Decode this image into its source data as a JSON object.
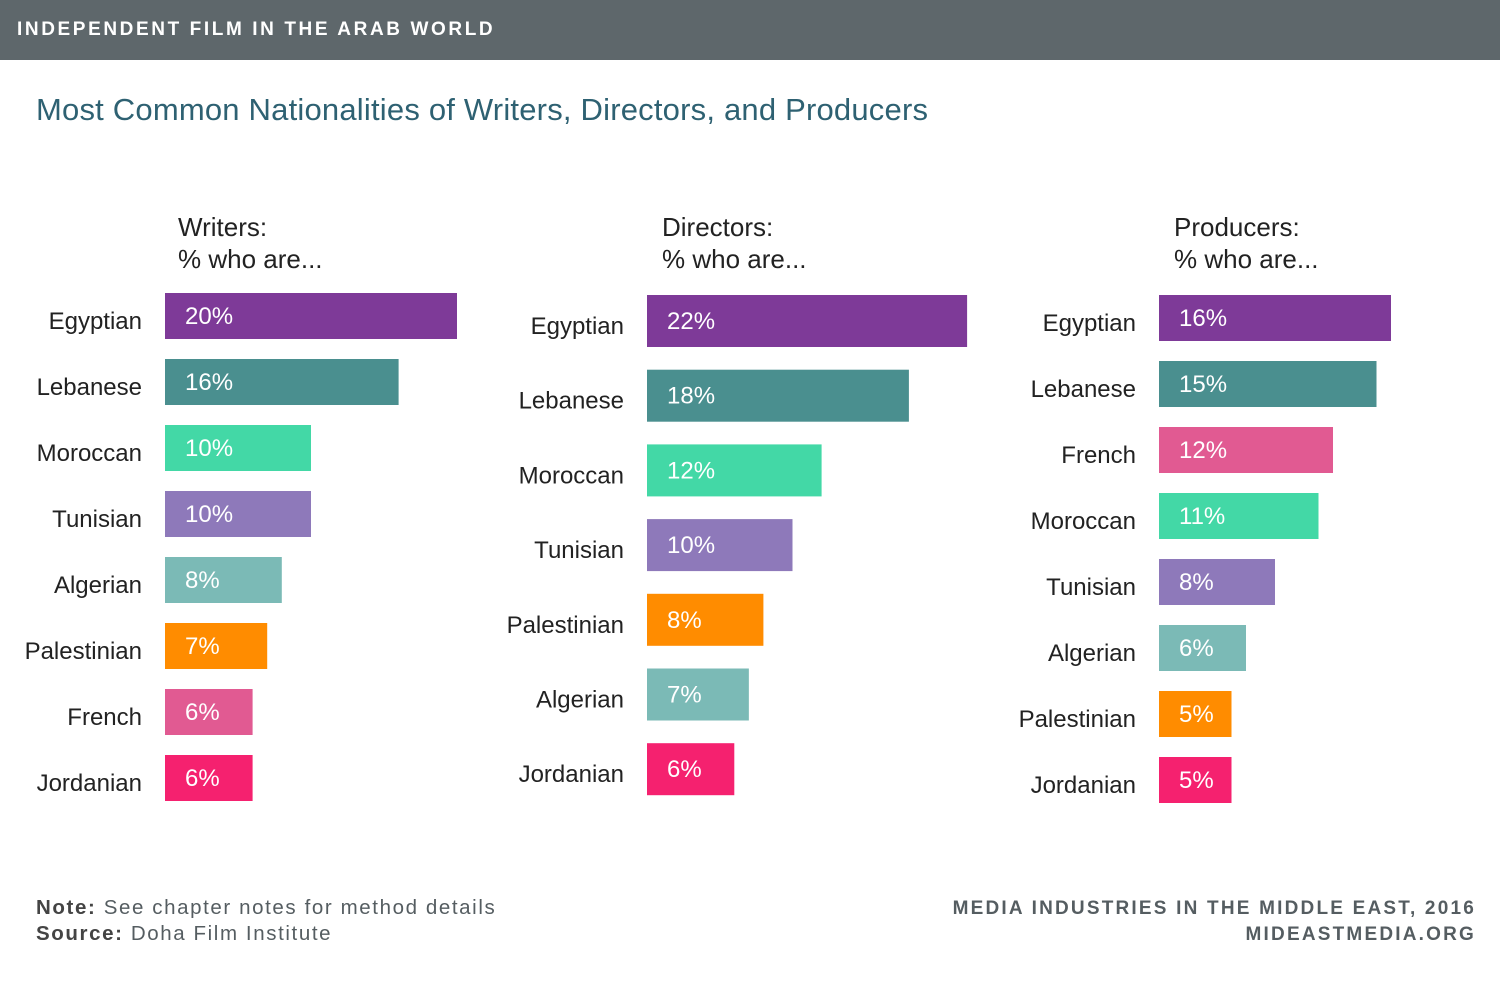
{
  "header": {
    "banner": "INDEPENDENT FILM IN THE ARAB WORLD"
  },
  "title": "Most Common Nationalities of Writers, Directors, and Producers",
  "footer": {
    "note_label": "Note:",
    "note_text": "See chapter notes for method details",
    "source_label": "Source:",
    "source_text": "Doha Film Institute",
    "credit_line1": "MEDIA INDUSTRIES IN THE MIDDLE EAST, 2016",
    "credit_line2": "MIDEASTMEDIA.ORG"
  },
  "colors": {
    "Egyptian": "#7e3a98",
    "Lebanese": "#4a8f8f",
    "Moroccan": "#43d8a6",
    "Tunisian": "#8e79ba",
    "Algerian": "#7bbab6",
    "Palestinian": "#ff8c00",
    "French": "#e15a92",
    "Jordanian": "#f5216f"
  },
  "chart_data": [
    {
      "type": "bar",
      "orientation": "horizontal",
      "title_line1": "Writers:",
      "title_line2": "% who are...",
      "categories": [
        "Egyptian",
        "Lebanese",
        "Moroccan",
        "Tunisian",
        "Algerian",
        "Palestinian",
        "French",
        "Jordanian"
      ],
      "values": [
        20,
        16,
        10,
        10,
        8,
        7,
        6,
        6
      ],
      "labels": [
        "20%",
        "16%",
        "10%",
        "10%",
        "8%",
        "7%",
        "6%",
        "6%"
      ],
      "unit": "%"
    },
    {
      "type": "bar",
      "orientation": "horizontal",
      "title_line1": "Directors:",
      "title_line2": "% who are...",
      "categories": [
        "Egyptian",
        "Lebanese",
        "Moroccan",
        "Tunisian",
        "Palestinian",
        "Algerian",
        "Jordanian"
      ],
      "values": [
        22,
        18,
        12,
        10,
        8,
        7,
        6
      ],
      "labels": [
        "22%",
        "18%",
        "12%",
        "10%",
        "8%",
        "7%",
        "6%"
      ],
      "unit": "%"
    },
    {
      "type": "bar",
      "orientation": "horizontal",
      "title_line1": "Producers:",
      "title_line2": "% who are...",
      "categories": [
        "Egyptian",
        "Lebanese",
        "French",
        "Moroccan",
        "Tunisian",
        "Algerian",
        "Palestinian",
        "Jordanian"
      ],
      "values": [
        16,
        15,
        12,
        11,
        8,
        6,
        5,
        5
      ],
      "labels": [
        "16%",
        "15%",
        "12%",
        "11%",
        "8%",
        "6%",
        "5%",
        "5%"
      ],
      "unit": "%"
    }
  ]
}
